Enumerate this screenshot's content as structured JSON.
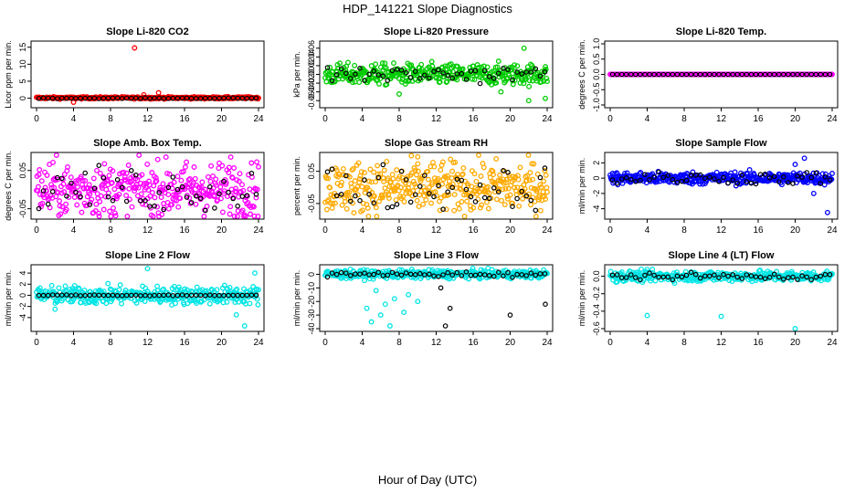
{
  "figure": {
    "title": "HDP_141221  Slope Diagnostics",
    "xlabel": "Hour of Day (UTC)"
  },
  "chart_data": [
    {
      "type": "scatter",
      "title": "Slope Li-820 CO2",
      "ylabel": "Licor ppm per min.",
      "xlim": [
        0,
        24
      ],
      "xticks": [
        "0",
        "4",
        "8",
        "12",
        "16",
        "20",
        "24"
      ],
      "ylim": [
        -2,
        16
      ],
      "yticks": [
        0,
        5,
        10,
        15
      ],
      "ytick_labels": [
        "0",
        "5",
        "10",
        "15"
      ],
      "color": "#ff0000",
      "series": [
        {
          "name": "points",
          "center": 0.1,
          "spread": 0.15,
          "outliers": [
            [
              10.6,
              14.8
            ],
            [
              4.0,
              -1.2
            ],
            [
              13.2,
              1.6
            ],
            [
              11.6,
              1.0
            ]
          ]
        },
        {
          "name": "hourly",
          "center": 0.0,
          "spread": 0.05
        }
      ]
    },
    {
      "type": "scatter",
      "title": "Slope Li-820 Pressure",
      "ylabel": "kPa per min.",
      "xlim": [
        0,
        24
      ],
      "xticks": [
        "0",
        "4",
        "8",
        "12",
        "16",
        "20",
        "24"
      ],
      "ylim": [
        -0.07,
        0.07
      ],
      "yticks": [
        -0.06,
        -0.04,
        -0.02,
        0.0,
        0.02,
        0.04,
        0.06
      ],
      "ytick_labels": [
        "-0.06",
        "-0.04",
        "-0.02",
        "0.00",
        "0.02",
        "0.04",
        "0.06"
      ],
      "color": "#00cc00",
      "series": [
        {
          "name": "points",
          "center": 0.0,
          "spread": 0.012,
          "outliers": [
            [
              8.0,
              -0.045
            ],
            [
              21.5,
              0.06
            ],
            [
              22.0,
              -0.06
            ],
            [
              23.8,
              -0.055
            ],
            [
              19.0,
              -0.04
            ]
          ]
        },
        {
          "name": "hourly",
          "center": 0.0,
          "spread": 0.01
        }
      ]
    },
    {
      "type": "scatter",
      "title": "Slope Li-820 Temp.",
      "ylabel": "degrees C per min.",
      "xlim": [
        0,
        24
      ],
      "xticks": [
        "0",
        "4",
        "8",
        "12",
        "16",
        "20",
        "24"
      ],
      "ylim": [
        -1.0,
        1.0
      ],
      "yticks": [
        -1.0,
        -0.5,
        0.0,
        0.5,
        1.0
      ],
      "ytick_labels": [
        "-1.0",
        "-0.5",
        "0.0",
        "0.5",
        "1.0"
      ],
      "color": "#ff00ff",
      "series": [
        {
          "name": "points",
          "center": 0.0,
          "spread": 0.0,
          "outliers": []
        },
        {
          "name": "hourly",
          "center": 0.0,
          "spread": 0.0
        }
      ]
    },
    {
      "type": "scatter",
      "title": "Slope Amb. Box Temp.",
      "ylabel": "degrees C per min.",
      "xlim": [
        0,
        24
      ],
      "xticks": [
        "0",
        "4",
        "8",
        "12",
        "16",
        "20",
        "24"
      ],
      "ylim": [
        -0.07,
        0.09
      ],
      "yticks": [
        -0.05,
        0.05
      ],
      "ytick_labels": [
        "-0.05",
        "0.05"
      ],
      "color": "#ff00ff",
      "series": [
        {
          "name": "points",
          "center": 0.0,
          "spread": 0.035,
          "outliers": [
            [
              21.0,
              0.085
            ]
          ]
        },
        {
          "name": "hourly",
          "center": 0.0,
          "spread": 0.03
        }
      ]
    },
    {
      "type": "scatter",
      "title": "Slope Gas Stream RH",
      "ylabel": "percent per min.",
      "xlim": [
        0,
        24
      ],
      "xticks": [
        "0",
        "4",
        "8",
        "12",
        "16",
        "20",
        "24"
      ],
      "ylim": [
        -0.09,
        0.1
      ],
      "yticks": [
        -0.05,
        0.05
      ],
      "ytick_labels": [
        "-0.05",
        "0.05"
      ],
      "color": "#ffaa00",
      "series": [
        {
          "name": "points",
          "center": 0.0,
          "spread": 0.04,
          "outliers": [
            [
              10.0,
              0.095
            ]
          ]
        },
        {
          "name": "hourly",
          "center": 0.0,
          "spread": 0.035
        }
      ]
    },
    {
      "type": "scatter",
      "title": "Slope Sample Flow",
      "ylabel": "ml/min per min.",
      "xlim": [
        0,
        24
      ],
      "xticks": [
        "0",
        "4",
        "8",
        "12",
        "16",
        "20",
        "24"
      ],
      "ylim": [
        -5,
        3
      ],
      "yticks": [
        -4,
        -2,
        0,
        2
      ],
      "ytick_labels": [
        "-4",
        "-2",
        "0",
        "2"
      ],
      "color": "#0000ff",
      "series": [
        {
          "name": "points",
          "center": 0.0,
          "spread": 0.4,
          "outliers": [
            [
              23.5,
              -4.5
            ],
            [
              21.0,
              2.6
            ],
            [
              20.0,
              1.8
            ],
            [
              22.0,
              -2.0
            ]
          ]
        },
        {
          "name": "hourly",
          "center": 0.0,
          "spread": 0.4
        }
      ]
    },
    {
      "type": "scatter",
      "title": "Slope Line 2 Flow",
      "ylabel": "ml/min per min.",
      "xlim": [
        0,
        24
      ],
      "xticks": [
        "0",
        "4",
        "8",
        "12",
        "16",
        "20",
        "24"
      ],
      "ylim": [
        -6,
        5
      ],
      "yticks": [
        -4,
        -2,
        0,
        2,
        4
      ],
      "ytick_labels": [
        "-4",
        "-2",
        "0",
        "2",
        "4"
      ],
      "color": "#00e5e5",
      "series": [
        {
          "name": "points",
          "center": 0.0,
          "spread": 0.8,
          "outliers": [
            [
              12.0,
              4.8
            ],
            [
              22.5,
              -5.5
            ],
            [
              21.6,
              -3.5
            ],
            [
              23.6,
              4.0
            ],
            [
              2.0,
              -2.5
            ]
          ]
        },
        {
          "name": "hourly",
          "center": 0.0,
          "spread": 0.05
        }
      ]
    },
    {
      "type": "scatter",
      "title": "Slope Line 3 Flow",
      "ylabel": "ml/min per min.",
      "xlim": [
        0,
        24
      ],
      "xticks": [
        "0",
        "4",
        "8",
        "12",
        "16",
        "20",
        "24"
      ],
      "ylim": [
        -40,
        5
      ],
      "yticks": [
        -40,
        -30,
        -20,
        -10,
        0
      ],
      "ytick_labels": [
        "-40",
        "-30",
        "-20",
        "-10",
        "0"
      ],
      "color": "#00e5e5",
      "series": [
        {
          "name": "points",
          "center": 0.0,
          "spread": 1.5,
          "outliers": [
            [
              5.0,
              -35
            ],
            [
              6.0,
              -30
            ],
            [
              4.5,
              -25
            ],
            [
              7.0,
              -38
            ],
            [
              8.5,
              -28
            ],
            [
              6.5,
              -22
            ],
            [
              9.0,
              -15
            ],
            [
              10.0,
              -20
            ],
            [
              5.5,
              -12
            ],
            [
              7.5,
              -18
            ]
          ]
        },
        {
          "name": "hourly",
          "center": 0.0,
          "spread": 1.0,
          "outliers": [
            [
              13.0,
              -38
            ],
            [
              13.5,
              -25
            ],
            [
              12.5,
              -10
            ],
            [
              20.0,
              -30
            ],
            [
              23.8,
              -22
            ]
          ]
        }
      ]
    },
    {
      "type": "scatter",
      "title": "Slope Line 4 (LT) Flow",
      "ylabel": "ml/min per min.",
      "xlim": [
        0,
        24
      ],
      "xticks": [
        "0",
        "4",
        "8",
        "12",
        "16",
        "20",
        "24"
      ],
      "ylim": [
        -0.6,
        0.1
      ],
      "yticks": [
        -0.6,
        -0.4,
        -0.2,
        0.0
      ],
      "ytick_labels": [
        "-0.6",
        "-0.4",
        "-0.2",
        "0.0"
      ],
      "color": "#00e5e5",
      "series": [
        {
          "name": "points",
          "center": 0.0,
          "spread": 0.03,
          "outliers": [
            [
              4.0,
              -0.45
            ],
            [
              12.0,
              -0.46
            ],
            [
              20.0,
              -0.6
            ]
          ]
        },
        {
          "name": "hourly",
          "center": 0.0,
          "spread": 0.02
        }
      ]
    }
  ]
}
